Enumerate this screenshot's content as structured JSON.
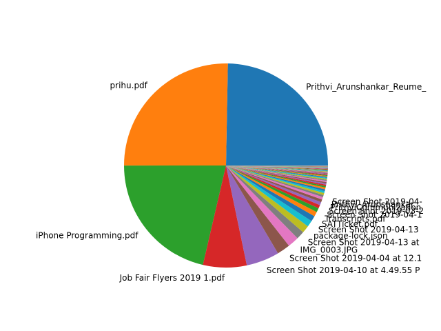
{
  "chart_data": {
    "type": "pie",
    "title": "",
    "start_angle_deg": 0,
    "direction": "counterclockwise",
    "slices": [
      {
        "label": "Prithvi_Arunshankar_Reume_",
        "value": 25.0,
        "color": "#1f77b4"
      },
      {
        "label": "prihu.pdf",
        "value": 25.6,
        "color": "#ff7f0e"
      },
      {
        "label": "iPhone Programming.pdf",
        "value": 21.6,
        "color": "#2ca02c"
      },
      {
        "label": "Job Fair Flyers 2019 1.pdf",
        "value": 7.0,
        "color": "#d62728"
      },
      {
        "label": "Screen Shot 2019-04-10 at 4.49.55 P",
        "value": 5.3,
        "color": "#9467bd"
      },
      {
        "label": "Screen Shot 2019-04-04 at 12.1",
        "value": 2.1,
        "color": "#8c564b"
      },
      {
        "label": "IMG_0003.JPG",
        "value": 1.8,
        "color": "#e377c2"
      },
      {
        "label": "Screen Shot 2019-04-13 at",
        "value": 1.3,
        "color": "#7f7f7f"
      },
      {
        "label": "package-lock.json",
        "value": 1.2,
        "color": "#bcbd22"
      },
      {
        "label": "Screen Shot 2019-04-13",
        "value": 1.0,
        "color": "#17becf"
      },
      {
        "label": "SATTicket.pdf",
        "value": 0.9,
        "color": "#1f77b4"
      },
      {
        "label": "Transcripts.pdf",
        "value": 0.75,
        "color": "#ff7f0e"
      },
      {
        "label": "Screen Shot 2019-04-1",
        "value": 0.65,
        "color": "#2ca02c"
      },
      {
        "label": "Screen Shot 2019-03-2",
        "value": 0.55,
        "color": "#d62728"
      },
      {
        "label": "PrithviCommunization",
        "value": 0.5,
        "color": "#9467bd"
      },
      {
        "label": "Prithvi_Arunshankar_",
        "value": 0.45,
        "color": "#8c564b"
      },
      {
        "label": "Screen Shot 2019-04-",
        "value": 0.4,
        "color": "#e377c2"
      },
      {
        "label": "",
        "value": 0.35,
        "color": "#7f7f7f"
      },
      {
        "label": "",
        "value": 0.33,
        "color": "#bcbd22"
      },
      {
        "label": "",
        "value": 0.31,
        "color": "#17becf"
      },
      {
        "label": "",
        "value": 0.29,
        "color": "#1f77b4"
      },
      {
        "label": "",
        "value": 0.27,
        "color": "#ff7f0e"
      },
      {
        "label": "",
        "value": 0.25,
        "color": "#2ca02c"
      },
      {
        "label": "",
        "value": 0.23,
        "color": "#d62728"
      },
      {
        "label": "",
        "value": 0.21,
        "color": "#9467bd"
      },
      {
        "label": "",
        "value": 0.2,
        "color": "#8c564b"
      },
      {
        "label": "",
        "value": 0.19,
        "color": "#e377c2"
      },
      {
        "label": "",
        "value": 0.18,
        "color": "#7f7f7f"
      },
      {
        "label": "",
        "value": 0.17,
        "color": "#bcbd22"
      },
      {
        "label": "",
        "value": 0.16,
        "color": "#17becf"
      },
      {
        "label": "",
        "value": 0.15,
        "color": "#1f77b4"
      },
      {
        "label": "",
        "value": 0.14,
        "color": "#ff7f0e"
      },
      {
        "label": "",
        "value": 0.13,
        "color": "#2ca02c"
      },
      {
        "label": "",
        "value": 0.12,
        "color": "#d62728"
      },
      {
        "label": "",
        "value": 0.11,
        "color": "#9467bd"
      },
      {
        "label": "",
        "value": 0.1,
        "color": "#8c564b"
      },
      {
        "label": "",
        "value": 0.1,
        "color": "#e377c2"
      },
      {
        "label": "",
        "value": 0.09,
        "color": "#7f7f7f"
      },
      {
        "label": "",
        "value": 0.09,
        "color": "#bcbd22"
      },
      {
        "label": "",
        "value": 0.08,
        "color": "#17becf"
      },
      {
        "label": "",
        "value": 0.08,
        "color": "#1f77b4"
      },
      {
        "label": "",
        "value": 0.07,
        "color": "#ff7f0e"
      },
      {
        "label": "",
        "value": 0.07,
        "color": "#2ca02c"
      },
      {
        "label": "",
        "value": 0.06,
        "color": "#d62728"
      },
      {
        "label": "",
        "value": 0.06,
        "color": "#9467bd"
      },
      {
        "label": "",
        "value": 0.05,
        "color": "#8c564b"
      },
      {
        "label": "",
        "value": 0.05,
        "color": "#e377c2"
      },
      {
        "label": "",
        "value": 0.05,
        "color": "#7f7f7f"
      },
      {
        "label": "",
        "value": 0.04,
        "color": "#bcbd22"
      },
      {
        "label": "",
        "value": 0.04,
        "color": "#17becf"
      },
      {
        "label": "",
        "value": 0.04,
        "color": "#1f77b4"
      },
      {
        "label": "",
        "value": 0.03,
        "color": "#ff7f0e"
      },
      {
        "label": "",
        "value": 0.03,
        "color": "#2ca02c"
      },
      {
        "label": "",
        "value": 0.03,
        "color": "#d62728"
      },
      {
        "label": "",
        "value": 0.03,
        "color": "#9467bd"
      },
      {
        "label": "",
        "value": 0.02,
        "color": "#8c564b"
      },
      {
        "label": "",
        "value": 0.02,
        "color": "#e377c2"
      },
      {
        "label": "",
        "value": 0.02,
        "color": "#7f7f7f"
      },
      {
        "label": "",
        "value": 0.02,
        "color": "#bcbd22"
      },
      {
        "label": "",
        "value": 0.02,
        "color": "#17becf"
      }
    ]
  }
}
